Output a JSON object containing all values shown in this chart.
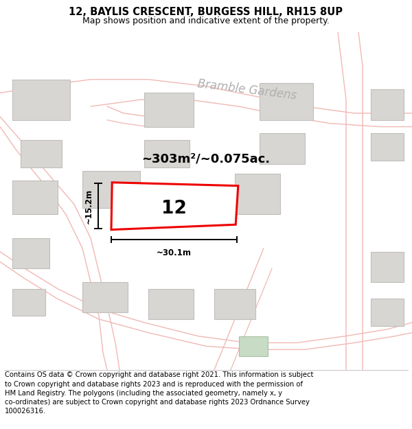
{
  "title": "12, BAYLIS CRESCENT, BURGESS HILL, RH15 8UP",
  "subtitle": "Map shows position and indicative extent of the property.",
  "footer": "Contains OS data © Crown copyright and database right 2021. This information is subject\nto Crown copyright and database rights 2023 and is reproduced with the permission of\nHM Land Registry. The polygons (including the associated geometry, namely x, y\nco-ordinates) are subject to Crown copyright and database rights 2023 Ordnance Survey\n100026316.",
  "bg_color": "#ffffff",
  "map_bg": "#efede8",
  "road_color": "#f0b8b4",
  "building_color": "#d8d6d3",
  "building_outline": "#c0bebb",
  "highlight_color": "#ee0000",
  "street_label": "Bramble Gardens",
  "property_label": "12",
  "area_label": "~303m²/~0.075ac.",
  "width_label": "~30.1m",
  "height_label": "~15.2m",
  "title_fontsize": 10.5,
  "subtitle_fontsize": 9,
  "footer_fontsize": 7.2,
  "area_fontsize": 13,
  "street_fontsize": 12
}
